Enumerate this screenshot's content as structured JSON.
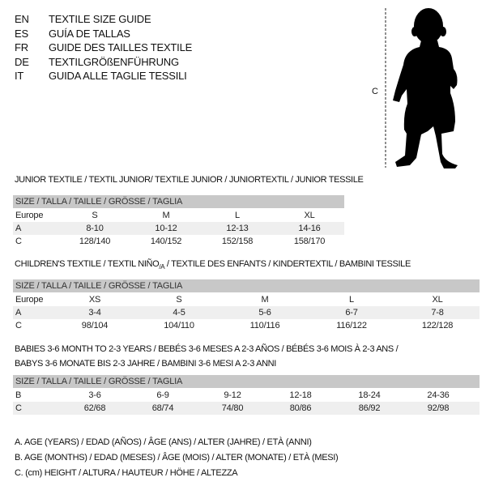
{
  "languages": [
    {
      "code": "EN",
      "text": "TEXTILE SIZE GUIDE"
    },
    {
      "code": "ES",
      "text": "GUÍA DE TALLAS"
    },
    {
      "code": "FR",
      "text": "GUIDE DES TAILLES TEXTILE"
    },
    {
      "code": "DE",
      "text": "TEXTILGRÖßENFÜHRUNG"
    },
    {
      "code": "IT",
      "text": "GUIDA ALLE TAGLIE TESSILI"
    }
  ],
  "figure": {
    "height_label": "C",
    "icon": "baby-silhouette-icon"
  },
  "junior": {
    "title": "JUNIOR TEXTILE / TEXTIL JUNIOR/ TEXTILE JUNIOR / JUNIORTEXTIL / JUNIOR TESSILE",
    "header": "SIZE / TALLA / TAILLE / GRÖSSE / TAGLIA",
    "rows": [
      {
        "label": "Europe",
        "cells": [
          "S",
          "M",
          "L",
          "XL"
        ]
      },
      {
        "label": "A",
        "cells": [
          "8-10",
          "10-12",
          "12-13",
          "14-16"
        ]
      },
      {
        "label": "C",
        "cells": [
          "128/140",
          "140/152",
          "152/158",
          "158/170"
        ]
      }
    ]
  },
  "children": {
    "title_pre": "CHILDREN'S TEXTILE / TEXTIL NIÑO",
    "title_sub": "/A",
    "title_post": " / TEXTILE DES ENFANTS / KINDERTEXTIL / BAMBINI TESSILE",
    "header": "SIZE / TALLA / TAILLE / GRÖSSE / TAGLIA",
    "rows": [
      {
        "label": "Europe",
        "cells": [
          "XS",
          "S",
          "M",
          "L",
          "XL"
        ]
      },
      {
        "label": "A",
        "cells": [
          "3-4",
          "4-5",
          "5-6",
          "6-7",
          "7-8"
        ]
      },
      {
        "label": "C",
        "cells": [
          "98/104",
          "104/110",
          "110/116",
          "116/122",
          "122/128"
        ]
      }
    ]
  },
  "babies": {
    "title_line1": "BABIES 3-6 MONTH TO 2-3 YEARS / BEBÉS 3-6 MESES A 2-3 AÑOS / BÉBÉS 3-6 MOIS À 2-3 ANS /",
    "title_line2": "BABYS 3-6 MONATE BIS 2-3 JAHRE / BAMBINI 3-6 MESI A 2-3 ANNI",
    "header": "SIZE / TALLA / TAILLE / GRÖSSE / TAGLIA",
    "rows": [
      {
        "label": "B",
        "cells": [
          "3-6",
          "6-9",
          "9-12",
          "12-18",
          "18-24",
          "24-36"
        ]
      },
      {
        "label": "C",
        "cells": [
          "62/68",
          "68/74",
          "74/80",
          "80/86",
          "86/92",
          "92/98"
        ]
      }
    ]
  },
  "legend": [
    "A. AGE (YEARS) / EDAD (AÑOS) / ÂGE (ANS) / ALTER (JAHRE) / ETÀ (ANNI)",
    "B. AGE (MONTHS) / EDAD (MESES) / ÂGE (MOIS) / ALTER (MONATE) / ETÀ (MESI)",
    "C. (cm) HEIGHT / ALTURA / HAUTEUR / HÖHE / ALTEZZA"
  ]
}
